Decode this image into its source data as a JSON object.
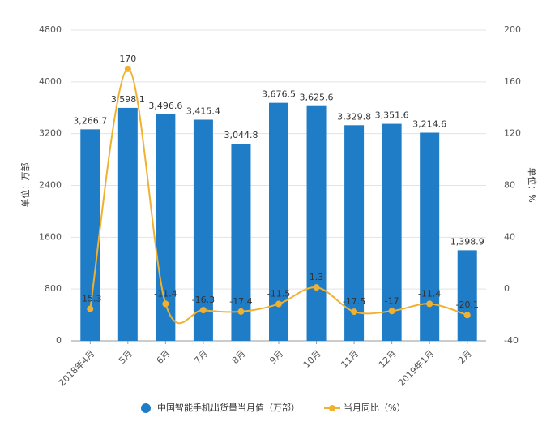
{
  "chart_data": {
    "type": "combo",
    "categories": [
      "2018年4月",
      "5月",
      "6月",
      "7月",
      "8月",
      "9月",
      "10月",
      "11月",
      "12月",
      "2019年1月",
      "2月"
    ],
    "series": [
      {
        "name": "中国智能手机出货量当月值（万部）",
        "type": "bar",
        "color": "#1f7cc6",
        "values": [
          3266.7,
          3598.1,
          3496.6,
          3415.4,
          3044.8,
          3676.5,
          3625.6,
          3329.8,
          3351.6,
          3214.6,
          1398.9
        ],
        "value_labels": [
          "3,266.7",
          "3,598.1",
          "3,496.6",
          "3,415.4",
          "3,044.8",
          "3,676.5",
          "3,625.6",
          "3,329.8",
          "3,351.6",
          "3,214.6",
          "1,398.9"
        ]
      },
      {
        "name": "当月同比（%）",
        "type": "line",
        "axis": "y2",
        "color": "#f0b132",
        "values": [
          -15.3,
          170,
          -11.4,
          -16.3,
          -17.4,
          -11.5,
          1.3,
          -17.5,
          -17,
          -11.4,
          -20.1
        ]
      }
    ],
    "ylabel": "单位：万部",
    "y2label": "单位：%",
    "ylim": [
      0,
      4800
    ],
    "yticks": [
      0,
      800,
      1600,
      2400,
      3200,
      4000,
      4800
    ],
    "y2lim": [
      -40,
      200
    ],
    "y2ticks": [
      -40,
      0,
      40,
      80,
      120,
      160,
      200
    ],
    "grid": true
  }
}
